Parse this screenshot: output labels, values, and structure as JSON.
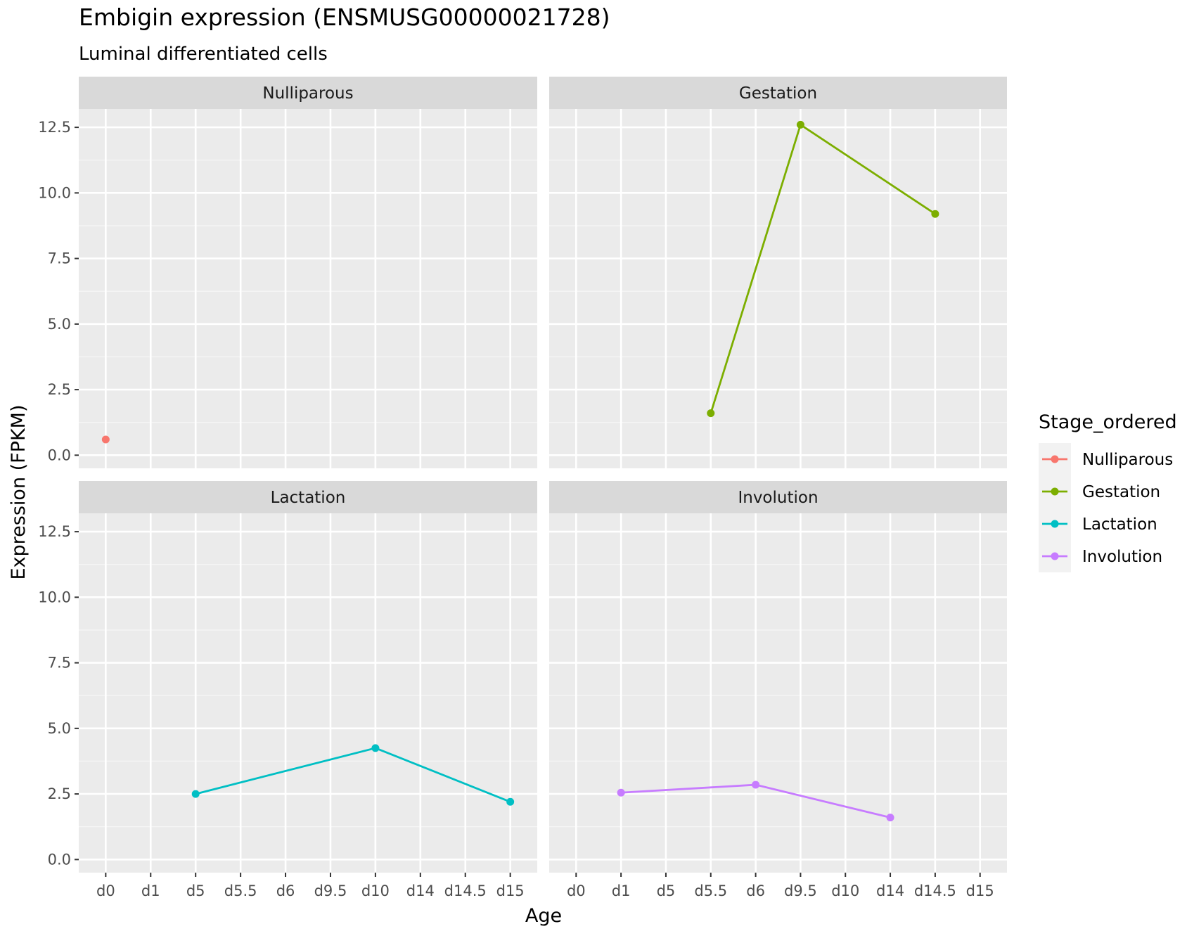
{
  "chart_data": {
    "type": "line",
    "title": "Embigin expression (ENSMUSG00000021728)",
    "subtitle": "Luminal differentiated cells",
    "xlabel": "Age",
    "ylabel": "Expression (FPKM)",
    "ylim": [
      -0.5,
      13.2
    ],
    "yticks": [
      0.0,
      2.5,
      5.0,
      7.5,
      10.0,
      12.5
    ],
    "ytick_labels": [
      "0.0",
      "2.5",
      "5.0",
      "7.5",
      "10.0",
      "12.5"
    ],
    "grid": true,
    "legend": {
      "title": "Stage_ordered",
      "position": "right",
      "entries": [
        "Nulliparous",
        "Gestation",
        "Lactation",
        "Involution"
      ]
    },
    "facets": [
      {
        "name": "Nulliparous",
        "color": "#F8766D",
        "categories": [
          "d0",
          "d1",
          "d5",
          "d5.5",
          "d6",
          "d9.5",
          "d10",
          "d14",
          "d14.5",
          "d15"
        ],
        "points": [
          {
            "x": "d0",
            "y": 0.6
          }
        ]
      },
      {
        "name": "Gestation",
        "color": "#7CAE00",
        "categories": [
          "d0",
          "d1",
          "d5",
          "d5.5",
          "d6",
          "d9.5",
          "d10",
          "d14",
          "d14.5",
          "d15"
        ],
        "points": [
          {
            "x": "d5.5",
            "y": 1.6
          },
          {
            "x": "d9.5",
            "y": 12.6
          },
          {
            "x": "d14.5",
            "y": 9.2
          }
        ]
      },
      {
        "name": "Lactation",
        "color": "#00BFC4",
        "categories": [
          "d0",
          "d1",
          "d5",
          "d5.5",
          "d6",
          "d9.5",
          "d10",
          "d14",
          "d14.5",
          "d15"
        ],
        "points": [
          {
            "x": "d5",
            "y": 2.5
          },
          {
            "x": "d10",
            "y": 4.25
          },
          {
            "x": "d15",
            "y": 2.2
          }
        ]
      },
      {
        "name": "Involution",
        "color": "#C77CFF",
        "categories": [
          "d0",
          "d1",
          "d5",
          "d5.5",
          "d6",
          "d9.5",
          "d10",
          "d14",
          "d14.5",
          "d15"
        ],
        "points": [
          {
            "x": "d1",
            "y": 2.55
          },
          {
            "x": "d6",
            "y": 2.85
          },
          {
            "x": "d14",
            "y": 1.6
          }
        ]
      }
    ]
  }
}
